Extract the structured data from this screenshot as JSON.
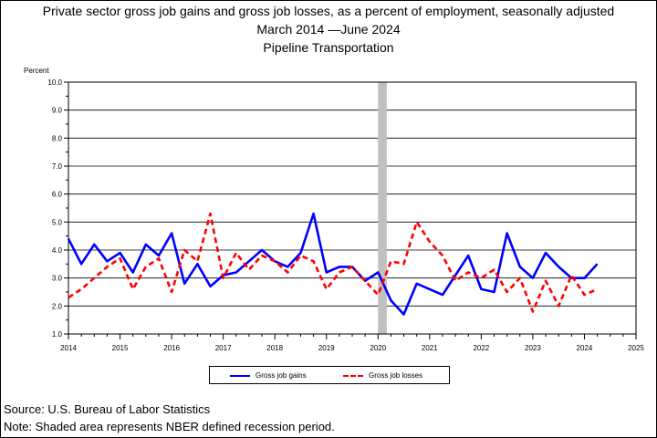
{
  "chart_data": {
    "type": "line",
    "title": "Private sector gross job gains and gross job losses, as a percent of employment, seasonally adjusted",
    "subtitle": "March 2014 —June 2024",
    "subtitle2": "Pipeline Transportation",
    "ylabel": "Percent",
    "xlabel": "",
    "ylim": [
      1.0,
      10.0
    ],
    "xlim": [
      2014,
      2025
    ],
    "y_ticks": [
      "1.0",
      "2.0",
      "3.0",
      "4.0",
      "5.0",
      "6.0",
      "7.0",
      "8.0",
      "9.0",
      "10.0"
    ],
    "x_ticks": [
      "2014",
      "2015",
      "2016",
      "2017",
      "2018",
      "2019",
      "2020",
      "2021",
      "2022",
      "2023",
      "2024",
      "2025"
    ],
    "grid": true,
    "legend_position": "bottom",
    "recession_shading": {
      "start": 2020.0,
      "end": 2020.17,
      "color": "#c0c0c0"
    },
    "series": [
      {
        "name": "Gross job gains",
        "color": "#0000ff",
        "style": "solid",
        "x": [
          2014.0,
          2014.25,
          2014.5,
          2014.75,
          2015.0,
          2015.25,
          2015.5,
          2015.75,
          2016.0,
          2016.25,
          2016.5,
          2016.75,
          2017.0,
          2017.25,
          2017.5,
          2017.75,
          2018.0,
          2018.25,
          2018.5,
          2018.75,
          2019.0,
          2019.25,
          2019.5,
          2019.75,
          2020.0,
          2020.25,
          2020.5,
          2020.75,
          2021.0,
          2021.25,
          2021.5,
          2021.75,
          2022.0,
          2022.25,
          2022.5,
          2022.75,
          2023.0,
          2023.25,
          2023.5,
          2023.75,
          2024.0,
          2024.25
        ],
        "values": [
          4.4,
          3.5,
          4.2,
          3.6,
          3.9,
          3.2,
          4.2,
          3.8,
          4.6,
          2.8,
          3.5,
          2.7,
          3.1,
          3.2,
          3.6,
          4.0,
          3.6,
          3.4,
          3.9,
          5.3,
          3.2,
          3.4,
          3.4,
          2.9,
          3.2,
          2.2,
          1.7,
          2.8,
          2.6,
          2.4,
          3.1,
          3.8,
          2.6,
          2.5,
          4.6,
          3.4,
          3.0,
          3.9,
          3.4,
          3.0,
          3.0,
          3.5
        ]
      },
      {
        "name": "Gross job losses",
        "color": "#ff0000",
        "style": "dashed",
        "x": [
          2014.0,
          2014.25,
          2014.5,
          2014.75,
          2015.0,
          2015.25,
          2015.5,
          2015.75,
          2016.0,
          2016.25,
          2016.5,
          2016.75,
          2017.0,
          2017.25,
          2017.5,
          2017.75,
          2018.0,
          2018.25,
          2018.5,
          2018.75,
          2019.0,
          2019.25,
          2019.5,
          2019.75,
          2020.0,
          2020.25,
          2020.5,
          2020.75,
          2021.0,
          2021.25,
          2021.5,
          2021.75,
          2022.0,
          2022.25,
          2022.5,
          2022.75,
          2023.0,
          2023.25,
          2023.5,
          2023.75,
          2024.0,
          2024.25
        ],
        "values": [
          2.3,
          2.6,
          3.0,
          3.4,
          3.7,
          2.6,
          3.4,
          3.7,
          2.5,
          4.0,
          3.6,
          5.3,
          3.0,
          3.9,
          3.3,
          3.8,
          3.6,
          3.2,
          3.8,
          3.6,
          2.6,
          3.2,
          3.4,
          2.9,
          2.4,
          3.6,
          3.5,
          5.0,
          4.3,
          3.8,
          2.9,
          3.2,
          3.0,
          3.3,
          2.5,
          3.0,
          1.8,
          2.9,
          2.0,
          3.1,
          2.4,
          2.6
        ]
      }
    ]
  },
  "footer": {
    "source": "Source: U.S. Bureau of Labor Statistics",
    "note": "Note: Shaded area represents NBER defined recession period."
  }
}
